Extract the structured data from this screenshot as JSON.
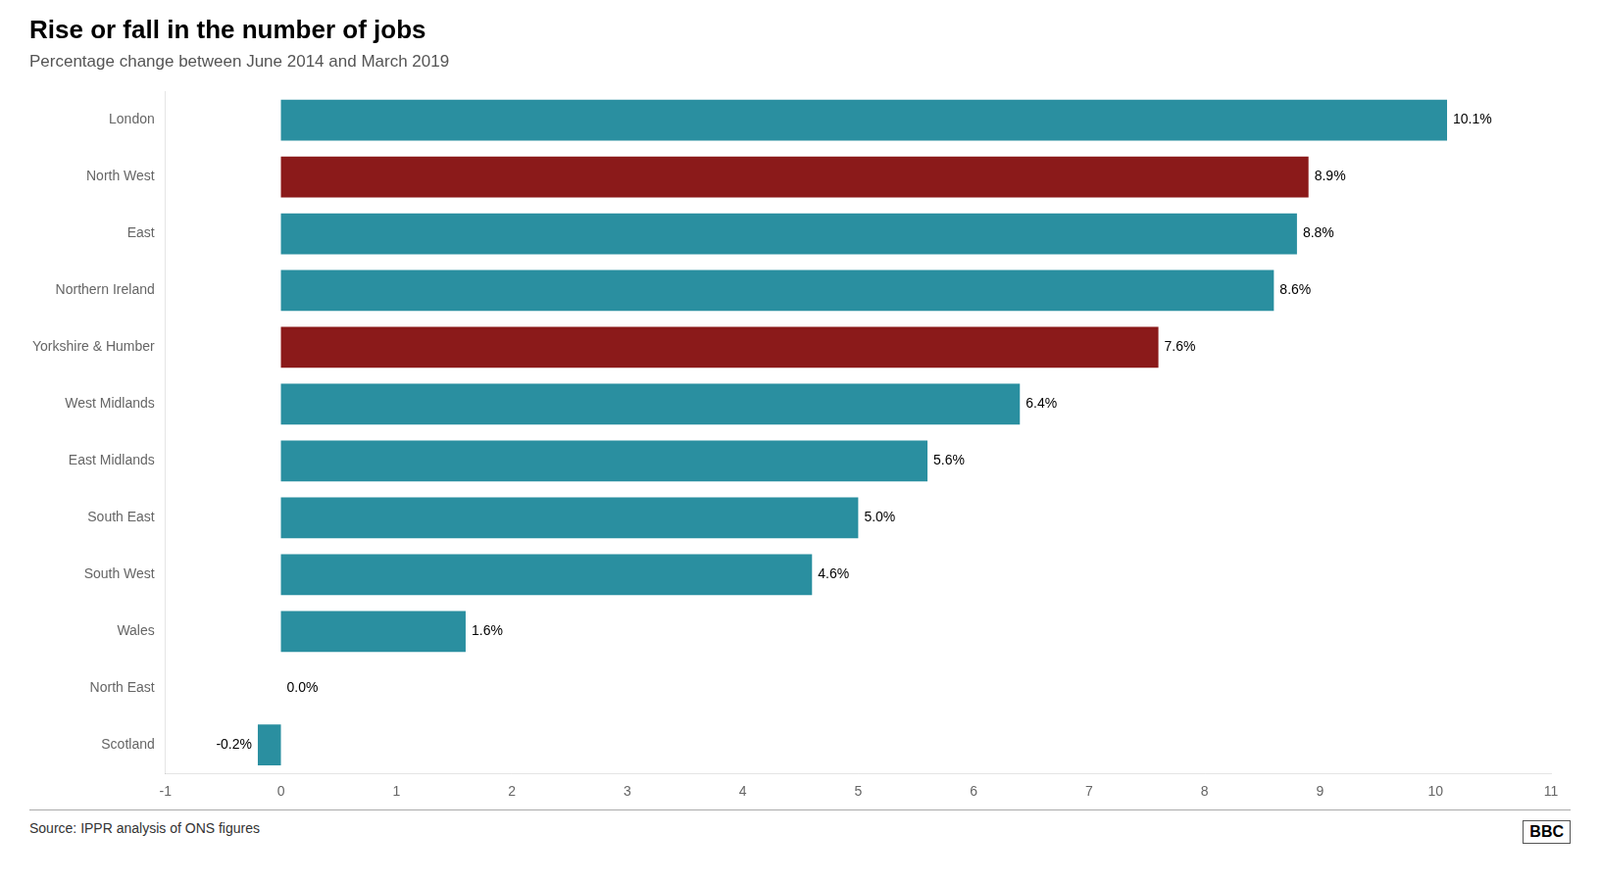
{
  "chart_data": {
    "type": "bar",
    "orientation": "horizontal",
    "title": "Rise or fall in the number of jobs",
    "subtitle": "Percentage change between June 2014 and March 2019",
    "source": "Source: IPPR analysis of ONS figures",
    "annotations": [
      "BBC"
    ],
    "categories": [
      "Scotland",
      "North East",
      "Wales",
      "South West",
      "South East",
      "East Midlands",
      "West Midlands",
      "Yorkshire & Humber",
      "Northern Ireland",
      "East",
      "North West",
      "London"
    ],
    "values": [
      -0.2,
      0.0,
      1.6,
      4.6,
      5.0,
      5.6,
      6.4,
      7.6,
      8.6,
      8.8,
      8.9,
      10.1
    ],
    "value_labels": [
      "-0.2%",
      "0.0%",
      "1.6%",
      "4.6%",
      "5.0%",
      "5.6%",
      "6.4%",
      "7.6%",
      "8.6%",
      "8.8%",
      "8.9%",
      "10.1%"
    ],
    "colors": [
      "#2a8fa0",
      "#2a8fa0",
      "#2a8fa0",
      "#2a8fa0",
      "#2a8fa0",
      "#2a8fa0",
      "#2a8fa0",
      "#8b1a1a",
      "#2a8fa0",
      "#2a8fa0",
      "#8b1a1a",
      "#2a8fa0"
    ],
    "data_labels": true,
    "xlim": [
      -1,
      11
    ],
    "xticks": [
      -1,
      0,
      1,
      2,
      3,
      4,
      5,
      6,
      7,
      8,
      9,
      10,
      11
    ],
    "grid": false
  }
}
